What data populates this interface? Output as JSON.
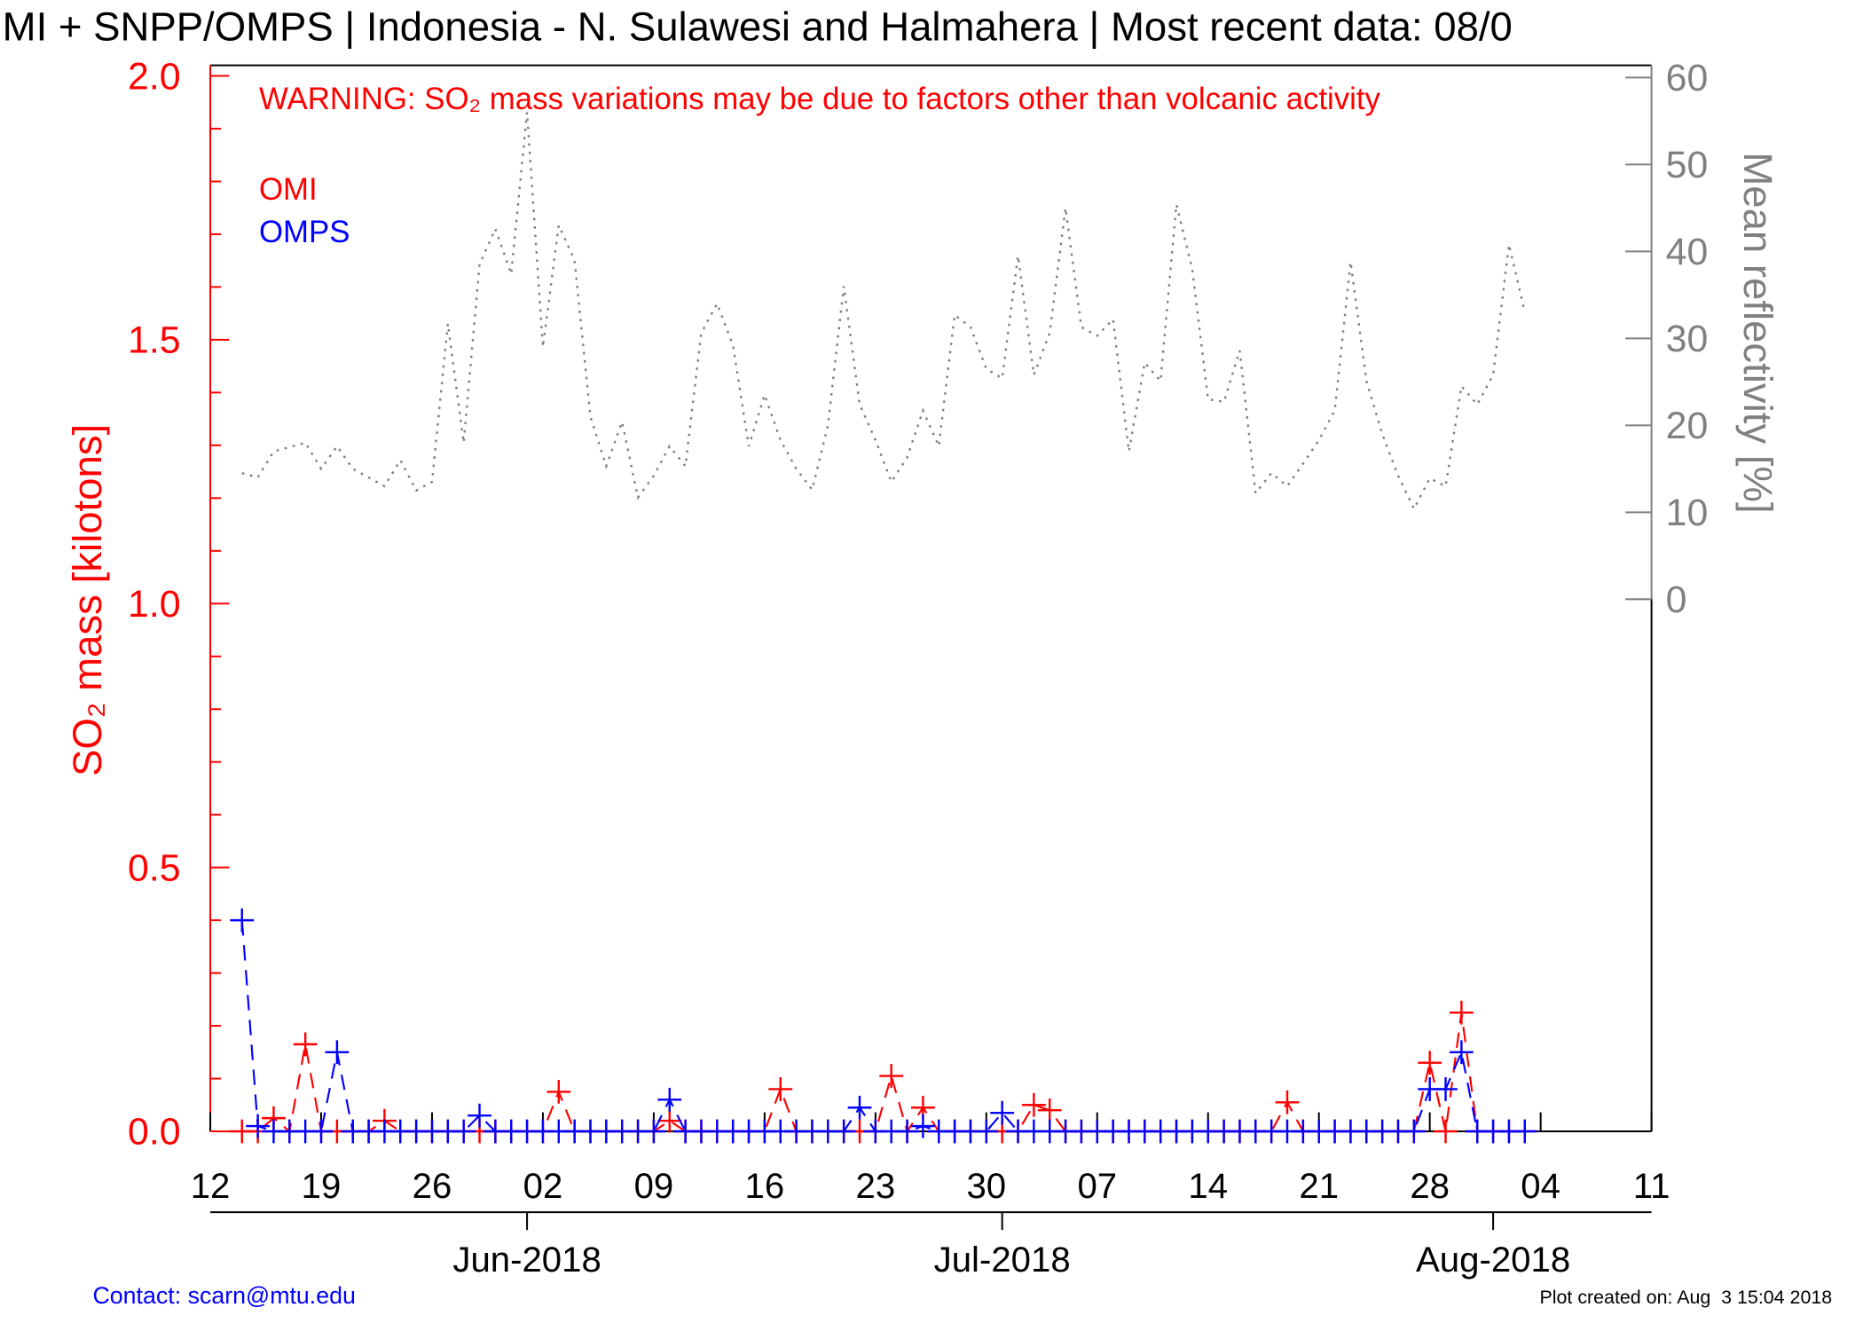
{
  "chart_data": {
    "type": "line",
    "title": "MI + SNPP/OMPS | Indonesia - N. Sulawesi and Halmahera | Most recent data: 08/0",
    "warning": "WARNING: SO₂ mass variations may be due to factors other than volcanic activity",
    "ylabel": "SO₂ mass [kilotons]",
    "y2label": "Mean reflectivity [%]",
    "contact": "Contact: scarn@mtu.edu",
    "created": "Plot created on: Aug  3 15:04 2018",
    "y_color": "#ff0000",
    "y2_color": "#808080",
    "xlim": [
      "2018-05-12",
      "2018-08-11"
    ],
    "xticks": [
      {
        "value": "2018-05-12",
        "label": "12"
      },
      {
        "value": "2018-05-19",
        "label": "19"
      },
      {
        "value": "2018-05-26",
        "label": "26"
      },
      {
        "value": "2018-06-02",
        "label": "02"
      },
      {
        "value": "2018-06-09",
        "label": "09"
      },
      {
        "value": "2018-06-16",
        "label": "16"
      },
      {
        "value": "2018-06-23",
        "label": "23"
      },
      {
        "value": "2018-06-30",
        "label": "30"
      },
      {
        "value": "2018-07-07",
        "label": "07"
      },
      {
        "value": "2018-07-14",
        "label": "14"
      },
      {
        "value": "2018-07-21",
        "label": "21"
      },
      {
        "value": "2018-07-28",
        "label": "28"
      },
      {
        "value": "2018-08-04",
        "label": "04"
      },
      {
        "value": "2018-08-11",
        "label": "11"
      }
    ],
    "month_ticks": [
      {
        "value": "2018-06-01",
        "label": "Jun-2018"
      },
      {
        "value": "2018-07-01",
        "label": "Jul-2018"
      },
      {
        "value": "2018-08-01",
        "label": "Aug-2018"
      }
    ],
    "ylim": [
      0,
      2.02
    ],
    "yticks": [
      {
        "value": 0,
        "label": "0.0"
      },
      {
        "value": 0.5,
        "label": "0.5"
      },
      {
        "value": 1,
        "label": "1.0"
      },
      {
        "value": 1.5,
        "label": "1.5"
      },
      {
        "value": 2,
        "label": "2.0"
      }
    ],
    "y_minor_ticks": [
      0.1,
      0.2,
      0.3,
      0.4,
      0.6,
      0.7,
      0.8,
      0.9,
      1.1,
      1.2,
      1.3,
      1.4,
      1.6,
      1.7,
      1.8,
      1.9
    ],
    "y2lim": [
      -61.2,
      61.4
    ],
    "y2ticks": [
      0,
      10,
      20,
      30,
      40,
      50,
      60
    ],
    "x": [
      "2018-05-14",
      "2018-05-15",
      "2018-05-16",
      "2018-05-17",
      "2018-05-18",
      "2018-05-19",
      "2018-05-20",
      "2018-05-21",
      "2018-05-22",
      "2018-05-23",
      "2018-05-24",
      "2018-05-25",
      "2018-05-26",
      "2018-05-27",
      "2018-05-28",
      "2018-05-29",
      "2018-05-30",
      "2018-05-31",
      "2018-06-01",
      "2018-06-02",
      "2018-06-03",
      "2018-06-04",
      "2018-06-05",
      "2018-06-06",
      "2018-06-07",
      "2018-06-08",
      "2018-06-09",
      "2018-06-10",
      "2018-06-11",
      "2018-06-12",
      "2018-06-13",
      "2018-06-14",
      "2018-06-15",
      "2018-06-16",
      "2018-06-17",
      "2018-06-18",
      "2018-06-19",
      "2018-06-20",
      "2018-06-21",
      "2018-06-22",
      "2018-06-23",
      "2018-06-24",
      "2018-06-25",
      "2018-06-26",
      "2018-06-27",
      "2018-06-28",
      "2018-06-29",
      "2018-06-30",
      "2018-07-01",
      "2018-07-02",
      "2018-07-03",
      "2018-07-04",
      "2018-07-05",
      "2018-07-06",
      "2018-07-07",
      "2018-07-08",
      "2018-07-09",
      "2018-07-10",
      "2018-07-11",
      "2018-07-12",
      "2018-07-13",
      "2018-07-14",
      "2018-07-15",
      "2018-07-16",
      "2018-07-17",
      "2018-07-18",
      "2018-07-19",
      "2018-07-20",
      "2018-07-21",
      "2018-07-22",
      "2018-07-23",
      "2018-07-24",
      "2018-07-25",
      "2018-07-26",
      "2018-07-27",
      "2018-07-28",
      "2018-07-29",
      "2018-07-30",
      "2018-07-31",
      "2018-08-01",
      "2018-08-02",
      "2018-08-03"
    ],
    "series": [
      {
        "name": "OMI",
        "color": "#ff0000",
        "marker": "+",
        "values": [
          0,
          0,
          0.025,
          0,
          0.165,
          0,
          0,
          0,
          0,
          0.02,
          0,
          0,
          0,
          0,
          0,
          0,
          0,
          0,
          0,
          0,
          0.075,
          0,
          0,
          0,
          0,
          0,
          0,
          0.02,
          0,
          0,
          0,
          0,
          0,
          0,
          0.08,
          0,
          0,
          0,
          0,
          0,
          0,
          0.105,
          0,
          0.045,
          0,
          0,
          0,
          0,
          0,
          0,
          0.05,
          0.04,
          0,
          0,
          0,
          0,
          0,
          0,
          0,
          0,
          0,
          0,
          0,
          0,
          0,
          0,
          0.055,
          0,
          0,
          0,
          0,
          0,
          0,
          0,
          0,
          0.13,
          0,
          0.225,
          0,
          0,
          0,
          0
        ]
      },
      {
        "name": "OMPS",
        "color": "#0000ff",
        "marker": "+",
        "values": [
          0.4,
          0.01,
          0,
          0,
          0,
          0,
          0.15,
          0,
          0,
          0,
          0,
          0,
          0,
          0,
          0,
          0.03,
          0,
          0,
          0,
          0,
          0,
          0,
          0,
          0,
          0,
          0,
          0,
          0.06,
          0,
          0,
          0,
          0,
          0,
          0,
          0,
          0,
          0,
          0,
          0,
          0.045,
          0,
          0,
          0,
          0.01,
          0,
          0,
          0,
          0,
          0.035,
          0,
          0,
          0,
          0,
          0,
          0,
          0,
          0,
          0,
          0,
          0,
          0,
          0,
          0,
          0,
          0,
          0,
          0,
          0,
          0,
          0,
          0,
          0,
          0,
          0,
          0,
          0.08,
          0.08,
          0.15,
          0,
          0,
          0,
          0
        ]
      },
      {
        "color": "#808080",
        "axis": "y2",
        "style": "dotted",
        "values": [
          14.5,
          14,
          17,
          17.5,
          18,
          15,
          17.6,
          15,
          14,
          13,
          16,
          12.5,
          13.5,
          31.7,
          18,
          38.5,
          42.6,
          37.4,
          56,
          29,
          43,
          39,
          21,
          15.3,
          20.4,
          11.7,
          14.2,
          17.6,
          15.3,
          30.6,
          34,
          29.2,
          17.6,
          23.5,
          18.3,
          15,
          12.6,
          20,
          36,
          22.4,
          18.3,
          13.5,
          16.3,
          21.7,
          17.6,
          32.7,
          31.3,
          26.5,
          25.4,
          39.5,
          25.8,
          30.6,
          45,
          31.3,
          30.3,
          32.2,
          17,
          27.2,
          25.1,
          45.4,
          38,
          23,
          22.7,
          28.6,
          12.2,
          14.5,
          13,
          15.6,
          18.3,
          21.7,
          38.8,
          25.1,
          19,
          14.2,
          10.4,
          13.9,
          13,
          24.5,
          22.4,
          25.8,
          40.8,
          33
        ]
      }
    ]
  }
}
